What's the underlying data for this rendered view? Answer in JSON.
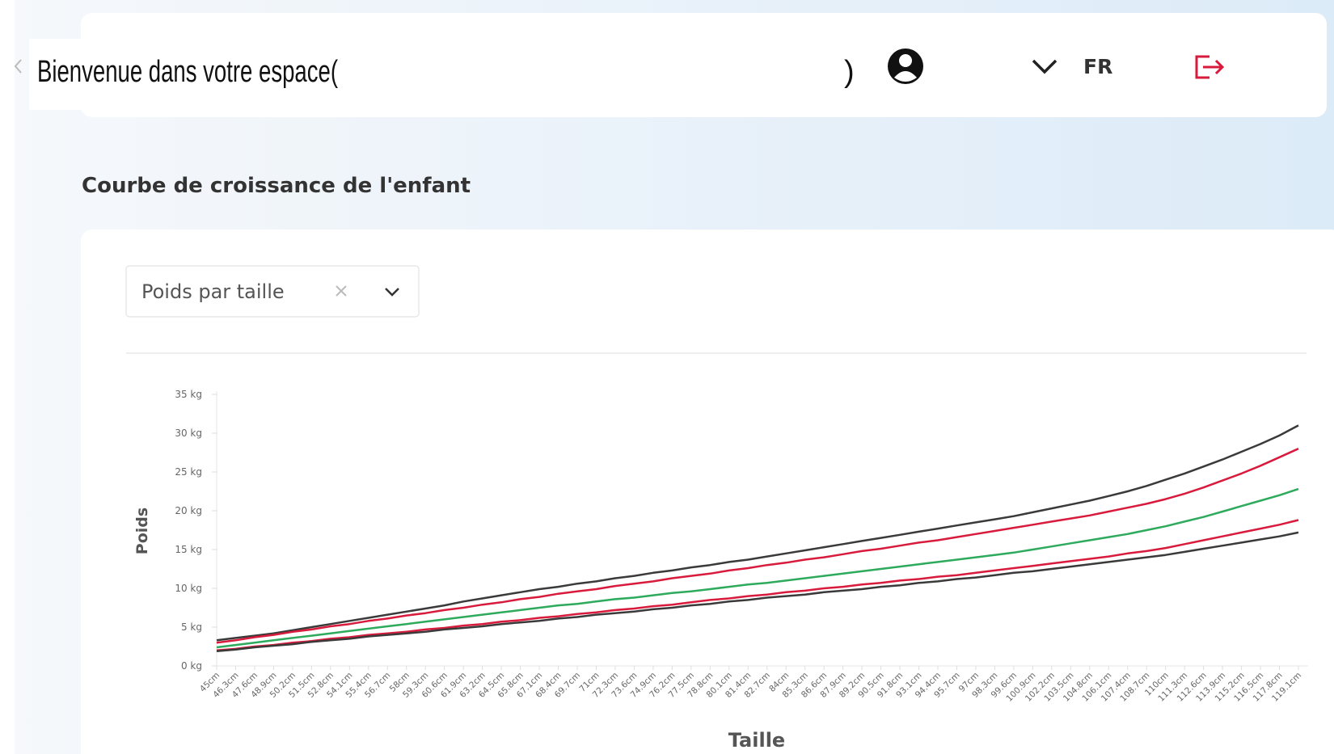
{
  "header": {
    "welcome": "Bienvenue dans votre espace(",
    "welcome_end": ")",
    "language": "FR"
  },
  "page_title": "Courbe de croissance de l'enfant",
  "selector": {
    "value": "Poids par taille"
  },
  "chart_data": {
    "type": "line",
    "xlabel": "Taille",
    "ylabel": "Poids",
    "categories": [
      "45cm",
      "46.3cm",
      "47.6cm",
      "48.9cm",
      "50.2cm",
      "51.5cm",
      "52.8cm",
      "54.1cm",
      "55.4cm",
      "56.7cm",
      "58cm",
      "59.3cm",
      "60.6cm",
      "61.9cm",
      "63.2cm",
      "64.5cm",
      "65.8cm",
      "67.1cm",
      "68.4cm",
      "69.7cm",
      "71cm",
      "72.3cm",
      "73.6cm",
      "74.9cm",
      "76.2cm",
      "77.5cm",
      "78.8cm",
      "80.1cm",
      "81.4cm",
      "82.7cm",
      "84cm",
      "85.3cm",
      "86.6cm",
      "87.9cm",
      "89.2cm",
      "90.5cm",
      "91.8cm",
      "93.1cm",
      "94.4cm",
      "95.7cm",
      "97cm",
      "98.3cm",
      "99.6cm",
      "100.9cm",
      "102.2cm",
      "103.5cm",
      "104.8cm",
      "106.1cm",
      "107.4cm",
      "108.7cm",
      "110cm",
      "111.3cm",
      "112.6cm",
      "113.9cm",
      "115.2cm",
      "116.5cm",
      "117.8cm",
      "119.1cm"
    ],
    "series": [
      {
        "color": "#3a3a3a",
        "values": [
          3.3,
          3.6,
          3.9,
          4.2,
          4.6,
          5.0,
          5.4,
          5.8,
          6.2,
          6.6,
          7.0,
          7.4,
          7.8,
          8.3,
          8.7,
          9.1,
          9.5,
          9.9,
          10.2,
          10.6,
          10.9,
          11.3,
          11.6,
          12.0,
          12.3,
          12.7,
          13.0,
          13.4,
          13.7,
          14.1,
          14.5,
          14.9,
          15.3,
          15.7,
          16.1,
          16.5,
          16.9,
          17.3,
          17.7,
          18.1,
          18.5,
          18.9,
          19.3,
          19.8,
          20.3,
          20.8,
          21.3,
          21.9,
          22.5,
          23.2,
          24.0,
          24.8,
          25.7,
          26.6,
          27.6,
          28.6,
          29.7,
          31.0
        ]
      },
      {
        "color": "#d81b3c",
        "values": [
          3.0,
          3.3,
          3.7,
          4.0,
          4.4,
          4.7,
          5.1,
          5.4,
          5.8,
          6.1,
          6.5,
          6.8,
          7.2,
          7.5,
          7.9,
          8.2,
          8.6,
          8.9,
          9.3,
          9.6,
          9.9,
          10.3,
          10.6,
          10.9,
          11.3,
          11.6,
          11.9,
          12.3,
          12.6,
          13.0,
          13.3,
          13.7,
          14.0,
          14.4,
          14.8,
          15.1,
          15.5,
          15.9,
          16.2,
          16.6,
          17.0,
          17.4,
          17.8,
          18.2,
          18.6,
          19.0,
          19.4,
          19.9,
          20.4,
          20.9,
          21.5,
          22.2,
          23.0,
          23.9,
          24.8,
          25.8,
          26.9,
          28.0
        ]
      },
      {
        "color": "#2eaa5c",
        "values": [
          2.4,
          2.7,
          3.0,
          3.3,
          3.6,
          3.9,
          4.2,
          4.5,
          4.8,
          5.1,
          5.4,
          5.7,
          6.0,
          6.3,
          6.6,
          6.9,
          7.2,
          7.5,
          7.8,
          8.0,
          8.3,
          8.6,
          8.8,
          9.1,
          9.4,
          9.6,
          9.9,
          10.2,
          10.5,
          10.7,
          11.0,
          11.3,
          11.6,
          11.9,
          12.2,
          12.5,
          12.8,
          13.1,
          13.4,
          13.7,
          14.0,
          14.3,
          14.6,
          15.0,
          15.4,
          15.8,
          16.2,
          16.6,
          17.0,
          17.5,
          18.0,
          18.6,
          19.2,
          19.9,
          20.6,
          21.3,
          22.0,
          22.8
        ]
      },
      {
        "color": "#d81b3c",
        "values": [
          2.0,
          2.2,
          2.5,
          2.7,
          3.0,
          3.2,
          3.5,
          3.7,
          4.0,
          4.2,
          4.4,
          4.7,
          4.9,
          5.2,
          5.4,
          5.7,
          5.9,
          6.2,
          6.4,
          6.7,
          6.9,
          7.2,
          7.4,
          7.7,
          7.9,
          8.2,
          8.5,
          8.7,
          9.0,
          9.2,
          9.5,
          9.7,
          10.0,
          10.2,
          10.5,
          10.7,
          11.0,
          11.2,
          11.5,
          11.7,
          12.0,
          12.3,
          12.6,
          12.9,
          13.2,
          13.5,
          13.8,
          14.1,
          14.5,
          14.8,
          15.2,
          15.7,
          16.2,
          16.7,
          17.2,
          17.7,
          18.2,
          18.8
        ]
      },
      {
        "color": "#3a3a3a",
        "values": [
          1.9,
          2.1,
          2.4,
          2.6,
          2.8,
          3.1,
          3.3,
          3.5,
          3.8,
          4.0,
          4.2,
          4.4,
          4.7,
          4.9,
          5.1,
          5.4,
          5.6,
          5.8,
          6.1,
          6.3,
          6.6,
          6.8,
          7.0,
          7.3,
          7.5,
          7.8,
          8.0,
          8.3,
          8.5,
          8.8,
          9.0,
          9.2,
          9.5,
          9.7,
          9.9,
          10.2,
          10.4,
          10.7,
          10.9,
          11.2,
          11.4,
          11.7,
          12.0,
          12.2,
          12.5,
          12.8,
          13.1,
          13.4,
          13.7,
          14.0,
          14.3,
          14.7,
          15.1,
          15.5,
          15.9,
          16.3,
          16.7,
          17.2
        ]
      }
    ],
    "ylim": [
      0,
      35
    ],
    "yticks": [
      {
        "value": 0,
        "label": "0 kg"
      },
      {
        "value": 5,
        "label": "5 kg"
      },
      {
        "value": 10,
        "label": "10 kg"
      },
      {
        "value": 15,
        "label": "15 kg"
      },
      {
        "value": 20,
        "label": "20 kg"
      },
      {
        "value": 25,
        "label": "25 kg"
      },
      {
        "value": 30,
        "label": "30 kg"
      },
      {
        "value": 35,
        "label": "35 kg"
      }
    ],
    "grid": false
  }
}
